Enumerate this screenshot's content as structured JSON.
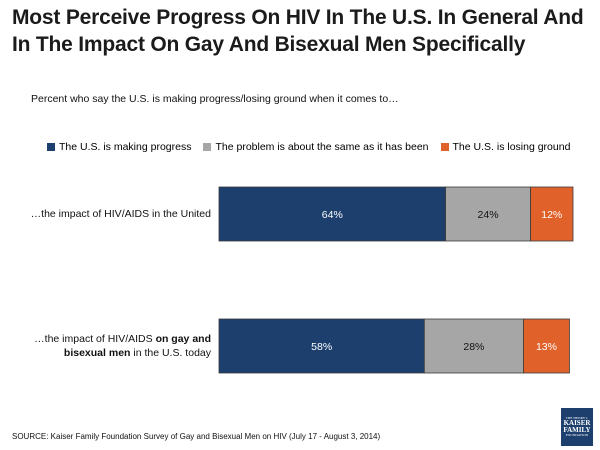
{
  "title": "Most Perceive Progress On HIV In The U.S. In General And In The Impact On Gay And Bisexual Men Specifically",
  "subtitle": "Percent who say the U.S. is making progress/losing ground when it comes to…",
  "source": "SOURCE: Kaiser Family Foundation Survey of Gay and Bisexual Men on HIV (July 17 - August 3, 2014)",
  "logo": {
    "line1": "THE HENRY J.",
    "line2": "KAISER",
    "line3": "FAMILY",
    "line4": "FOUNDATION"
  },
  "chart_data": {
    "type": "bar",
    "orientation": "horizontal",
    "stacked": true,
    "xlim": [
      0,
      100
    ],
    "categories": [
      {
        "parts": [
          {
            "text": "…the impact of HIV/AIDS in the United",
            "bold": false
          }
        ]
      },
      {
        "parts": [
          {
            "text": "…the impact of HIV/AIDS ",
            "bold": false
          },
          {
            "text": "on gay and",
            "bold": true
          }
        ],
        "parts2": [
          {
            "text": "bisexual men",
            "bold": true
          },
          {
            "text": " in the U.S. today",
            "bold": false
          }
        ]
      }
    ],
    "series": [
      {
        "name": "The U.S. is making progress",
        "color": "#1c3f6e",
        "label_color": "#ffffff",
        "values": [
          64,
          58
        ],
        "labels": [
          "64%",
          "58%"
        ]
      },
      {
        "name": "The problem is about the same as it has been",
        "color": "#a6a6a6",
        "label_color": "#111111",
        "values": [
          24,
          28
        ],
        "labels": [
          "24%",
          "28%"
        ]
      },
      {
        "name": "The U.S. is losing ground",
        "color": "#e0612a",
        "label_color": "#ffffff",
        "values": [
          12,
          13
        ],
        "labels": [
          "12%",
          "13%"
        ]
      }
    ]
  }
}
